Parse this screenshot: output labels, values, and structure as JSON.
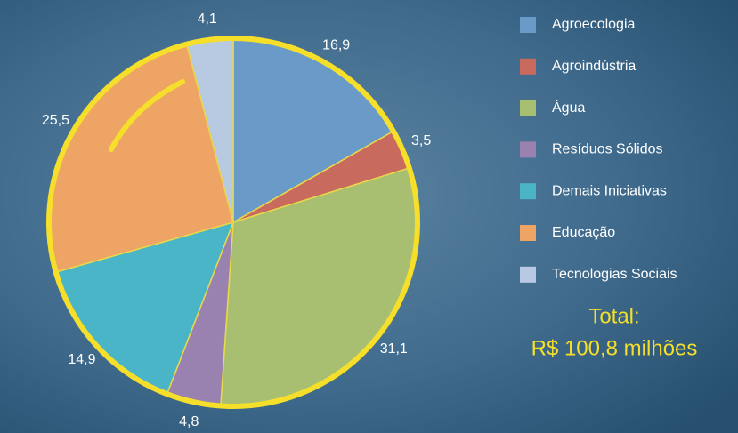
{
  "chart_data": {
    "type": "pie",
    "categories": [
      "Agroecologia",
      "Agroindústria",
      "Água",
      "Resíduos Sólidos",
      "Demais Iniciativas",
      "Educação",
      "Tecnologias Sociais"
    ],
    "values": [
      16.9,
      3.5,
      31.1,
      4.8,
      14.9,
      25.5,
      4.1
    ],
    "value_labels": [
      "16,9",
      "3,5",
      "31,1",
      "4,8",
      "14,9",
      "25,5",
      "4,1"
    ],
    "colors": [
      "#6a9bc8",
      "#c96a5e",
      "#a8bf72",
      "#9a82b0",
      "#4bb5c8",
      "#eea464",
      "#b8c9e2"
    ],
    "legend": "right",
    "annotations": [
      "Total:",
      "R$ 100,8 milhões"
    ]
  }
}
